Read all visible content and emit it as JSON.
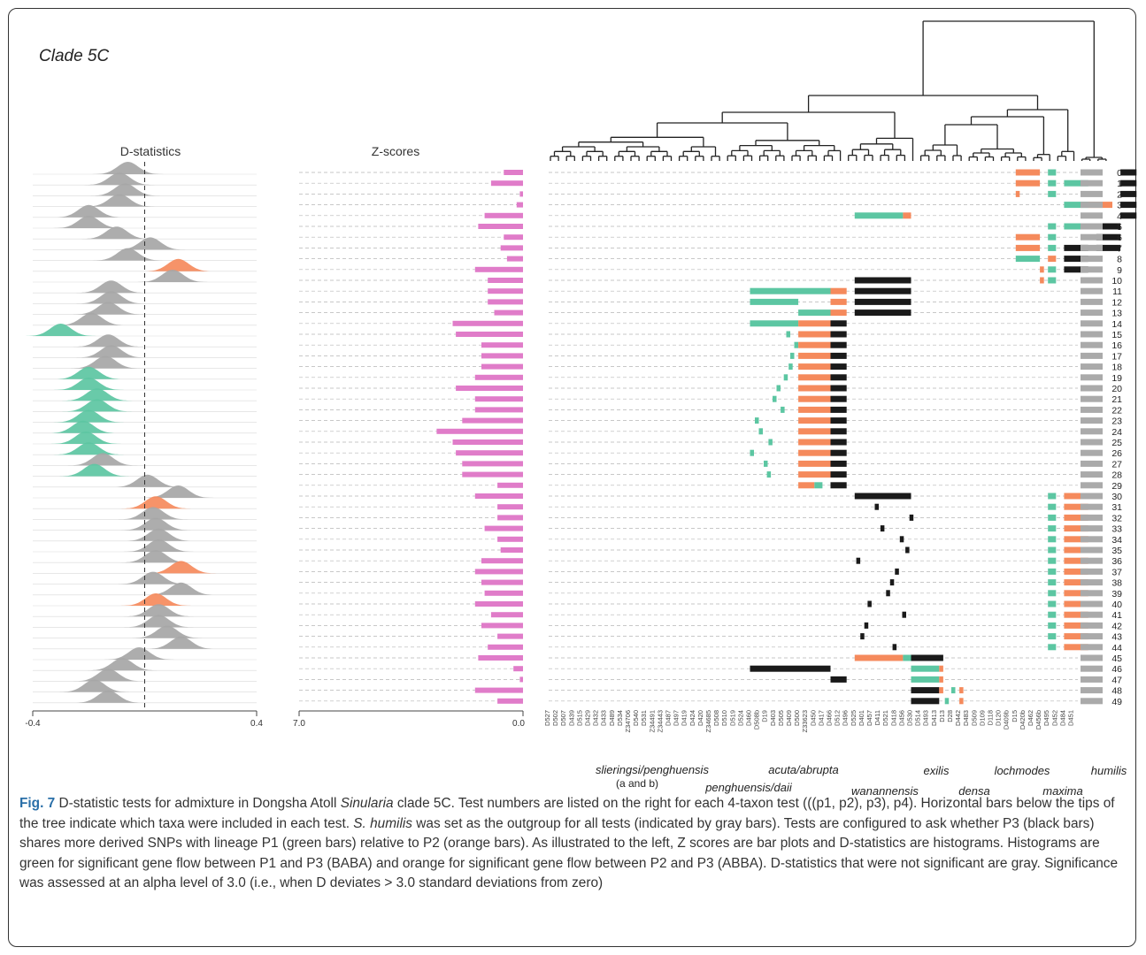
{
  "figure": {
    "title": "Clade 5C",
    "dstat_title": "D-statistics",
    "zscore_title": "Z-scores",
    "dstat_axis": {
      "min_label": "-0.4",
      "max_label": "0.4",
      "min": -0.4,
      "max": 0.4
    },
    "zscore_axis": {
      "left_label": "7.0",
      "right_label": "0.0",
      "max": 7.0
    },
    "colors": {
      "p1_green": "#5cc6a2",
      "p2_orange": "#f58a5c",
      "p3_black": "#1a1a1a",
      "outgroup_gray": "#aaaaaa",
      "zbar_pink": "#e07cc9",
      "ns_gray": "#a6a6a6"
    },
    "taxa": [
      "D527",
      "D502",
      "D507",
      "D439",
      "D515",
      "D429",
      "D432",
      "D433",
      "D489",
      "D534",
      "Z34706",
      "D540",
      "D531",
      "Z34491",
      "Z34443",
      "D487",
      "D497",
      "D419",
      "D424",
      "D420",
      "Z34685",
      "D508",
      "D510",
      "D519",
      "D524",
      "D460",
      "D508b",
      "D19",
      "D403",
      "D505",
      "D409",
      "D500",
      "Z33623",
      "D450",
      "D417",
      "D466",
      "D512",
      "D496",
      "D525",
      "D401",
      "D457",
      "D411",
      "D521",
      "D418",
      "D456",
      "D530",
      "D514",
      "D493",
      "D413",
      "D13",
      "D28",
      "D442",
      "D483",
      "D509",
      "D109",
      "D118",
      "D120",
      "D409b",
      "D15",
      "D420b",
      "D462",
      "D456b",
      "D495",
      "D452",
      "D484",
      "D451"
    ],
    "clade_labels": [
      "slieringsi/penghuensis",
      "(a and b)",
      "penghuensis/daii",
      "acuta/abrupta",
      "wanannensis",
      "exilis",
      "densa",
      "lochmodes",
      "maxima",
      "humilis"
    ]
  },
  "chart_data": {
    "type": "bar",
    "title": "",
    "categories": [
      "0",
      "1",
      "2",
      "3",
      "4",
      "5",
      "6",
      "7",
      "8",
      "9",
      "10",
      "11",
      "12",
      "13",
      "14",
      "15",
      "16",
      "17",
      "18",
      "19",
      "20",
      "21",
      "22",
      "23",
      "24",
      "25",
      "26",
      "27",
      "28",
      "29",
      "30",
      "31",
      "32",
      "33",
      "34",
      "35",
      "36",
      "37",
      "38",
      "39",
      "40",
      "41",
      "42",
      "43",
      "44",
      "45",
      "46",
      "47",
      "48",
      "49"
    ],
    "series": [
      {
        "name": "Z-scores",
        "values": [
          0.6,
          1.0,
          0.1,
          0.2,
          1.2,
          1.4,
          0.6,
          0.7,
          0.5,
          1.5,
          1.1,
          1.1,
          1.1,
          0.9,
          2.2,
          2.1,
          1.3,
          1.3,
          1.3,
          1.5,
          2.1,
          1.5,
          1.5,
          1.9,
          2.7,
          2.2,
          2.1,
          1.9,
          1.9,
          0.8,
          1.5,
          0.8,
          0.8,
          1.2,
          0.8,
          0.7,
          1.3,
          1.5,
          1.3,
          1.2,
          1.5,
          1.0,
          1.3,
          0.8,
          1.1,
          1.4,
          0.3,
          0.1,
          1.5,
          0.8
        ]
      },
      {
        "name": "D-statistics",
        "values": [
          -0.06,
          -0.09,
          -0.07,
          -0.09,
          -0.2,
          -0.2,
          -0.1,
          0.02,
          -0.06,
          0.12,
          0.1,
          -0.12,
          -0.12,
          -0.13,
          -0.19,
          -0.3,
          -0.13,
          -0.12,
          -0.14,
          -0.2,
          -0.2,
          -0.17,
          -0.17,
          -0.2,
          -0.22,
          -0.21,
          -0.2,
          -0.15,
          -0.18,
          0.01,
          0.12,
          0.04,
          0.03,
          0.04,
          0.05,
          0.05,
          0.04,
          0.13,
          0.03,
          0.13,
          0.04,
          0.05,
          0.05,
          0.08,
          0.13,
          -0.02,
          -0.08,
          -0.13,
          -0.18,
          -0.13
        ]
      }
    ],
    "significance": [
      "ns",
      "ns",
      "ns",
      "ns",
      "ns",
      "ns",
      "ns",
      "ns",
      "ns",
      "ABBA",
      "ns",
      "ns",
      "ns",
      "ns",
      "ns",
      "BABA",
      "ns",
      "ns",
      "ns",
      "BABA",
      "BABA",
      "BABA",
      "BABA",
      "BABA",
      "BABA",
      "BABA",
      "BABA",
      "ns",
      "BABA",
      "ns",
      "ns",
      "ABBA",
      "ns",
      "ns",
      "ns",
      "ns",
      "ns",
      "ABBA",
      "ns",
      "ns",
      "ABBA",
      "ns",
      "ns",
      "ns",
      "ns",
      "ns",
      "ns",
      "ns",
      "ns",
      "ns"
    ],
    "test_segments": [
      [
        {
          "t": "p2",
          "a": 58,
          "b": 61
        },
        {
          "t": "p1",
          "a": 62,
          "b": 63
        },
        {
          "t": "p3",
          "a": 71,
          "b": 73
        }
      ],
      [
        {
          "t": "p2",
          "a": 58,
          "b": 61
        },
        {
          "t": "p1",
          "a": 62,
          "b": 63
        },
        {
          "t": "p1",
          "a": 64,
          "b": 67
        },
        {
          "t": "p3",
          "a": 71,
          "b": 73
        }
      ],
      [
        {
          "t": "p2",
          "a": 58,
          "b": 58.5
        },
        {
          "t": "p1",
          "a": 62,
          "b": 63
        },
        {
          "t": "p3",
          "a": 71,
          "b": 73
        }
      ],
      [
        {
          "t": "p1",
          "a": 64,
          "b": 67
        },
        {
          "t": "p2",
          "a": 67,
          "b": 70
        },
        {
          "t": "p3",
          "a": 71,
          "b": 73
        }
      ],
      [
        {
          "t": "p1",
          "a": 38,
          "b": 44
        },
        {
          "t": "p2",
          "a": 44,
          "b": 45
        },
        {
          "t": "p3",
          "a": 71,
          "b": 73
        }
      ],
      [
        {
          "t": "p1",
          "a": 62,
          "b": 63
        },
        {
          "t": "p1",
          "a": 64,
          "b": 67
        },
        {
          "t": "p3",
          "a": 68,
          "b": 71
        }
      ],
      [
        {
          "t": "p2",
          "a": 58,
          "b": 61
        },
        {
          "t": "p1",
          "a": 62,
          "b": 63
        },
        {
          "t": "p3",
          "a": 68,
          "b": 71
        }
      ],
      [
        {
          "t": "p2",
          "a": 58,
          "b": 61
        },
        {
          "t": "p1",
          "a": 62,
          "b": 63
        },
        {
          "t": "p3",
          "a": 64,
          "b": 67
        },
        {
          "t": "p3",
          "a": 68,
          "b": 71
        }
      ],
      [
        {
          "t": "p1",
          "a": 58,
          "b": 61
        },
        {
          "t": "p2",
          "a": 62,
          "b": 63
        },
        {
          "t": "p3",
          "a": 64,
          "b": 67
        }
      ],
      [
        {
          "t": "p2",
          "a": 61,
          "b": 61.5
        },
        {
          "t": "p1",
          "a": 62,
          "b": 63
        },
        {
          "t": "p3",
          "a": 64,
          "b": 67
        }
      ],
      [
        {
          "t": "p2",
          "a": 61,
          "b": 61.5
        },
        {
          "t": "p1",
          "a": 62,
          "b": 63
        },
        {
          "t": "p3",
          "a": 38,
          "b": 45
        }
      ],
      [
        {
          "t": "p1",
          "a": 25,
          "b": 35
        },
        {
          "t": "p2",
          "a": 35,
          "b": 37
        },
        {
          "t": "p3",
          "a": 38,
          "b": 45
        }
      ],
      [
        {
          "t": "p1",
          "a": 25,
          "b": 31
        },
        {
          "t": "p2",
          "a": 35,
          "b": 37
        },
        {
          "t": "p3",
          "a": 38,
          "b": 45
        }
      ],
      [
        {
          "t": "p1",
          "a": 31,
          "b": 35
        },
        {
          "t": "p2",
          "a": 35,
          "b": 37
        },
        {
          "t": "p3",
          "a": 38,
          "b": 45
        }
      ],
      [
        {
          "t": "p1",
          "a": 25,
          "b": 31
        },
        {
          "t": "p2",
          "a": 31,
          "b": 35
        },
        {
          "t": "p3",
          "a": 35,
          "b": 37
        }
      ],
      [
        {
          "t": "p1",
          "a": 29.5,
          "b": 29.7
        },
        {
          "t": "p2",
          "a": 31,
          "b": 35
        },
        {
          "t": "p3",
          "a": 35,
          "b": 37
        }
      ],
      [
        {
          "t": "p1",
          "a": 30.5,
          "b": 30.7
        },
        {
          "t": "p2",
          "a": 31,
          "b": 35
        },
        {
          "t": "p3",
          "a": 35,
          "b": 37
        }
      ],
      [
        {
          "t": "p1",
          "a": 30,
          "b": 30.2
        },
        {
          "t": "p2",
          "a": 31,
          "b": 35
        },
        {
          "t": "p3",
          "a": 35,
          "b": 37
        }
      ],
      [
        {
          "t": "p1",
          "a": 29.8,
          "b": 30
        },
        {
          "t": "p2",
          "a": 31,
          "b": 35
        },
        {
          "t": "p3",
          "a": 35,
          "b": 37
        }
      ],
      [
        {
          "t": "p1",
          "a": 29.2,
          "b": 29.4
        },
        {
          "t": "p2",
          "a": 31,
          "b": 35
        },
        {
          "t": "p3",
          "a": 35,
          "b": 37
        }
      ],
      [
        {
          "t": "p1",
          "a": 28.3,
          "b": 28.5
        },
        {
          "t": "p2",
          "a": 31,
          "b": 35
        },
        {
          "t": "p3",
          "a": 35,
          "b": 37
        }
      ],
      [
        {
          "t": "p1",
          "a": 27.8,
          "b": 28
        },
        {
          "t": "p2",
          "a": 31,
          "b": 35
        },
        {
          "t": "p3",
          "a": 35,
          "b": 37
        }
      ],
      [
        {
          "t": "p1",
          "a": 28.8,
          "b": 29
        },
        {
          "t": "p2",
          "a": 31,
          "b": 35
        },
        {
          "t": "p3",
          "a": 35,
          "b": 37
        }
      ],
      [
        {
          "t": "p1",
          "a": 25.6,
          "b": 25.8
        },
        {
          "t": "p2",
          "a": 31,
          "b": 35
        },
        {
          "t": "p3",
          "a": 35,
          "b": 37
        }
      ],
      [
        {
          "t": "p1",
          "a": 26.1,
          "b": 26.3
        },
        {
          "t": "p2",
          "a": 31,
          "b": 35
        },
        {
          "t": "p3",
          "a": 35,
          "b": 37
        }
      ],
      [
        {
          "t": "p1",
          "a": 27.3,
          "b": 27.5
        },
        {
          "t": "p2",
          "a": 31,
          "b": 35
        },
        {
          "t": "p3",
          "a": 35,
          "b": 37
        }
      ],
      [
        {
          "t": "p1",
          "a": 25,
          "b": 25.2
        },
        {
          "t": "p2",
          "a": 31,
          "b": 35
        },
        {
          "t": "p3",
          "a": 35,
          "b": 37
        }
      ],
      [
        {
          "t": "p1",
          "a": 26.7,
          "b": 26.9
        },
        {
          "t": "p2",
          "a": 31,
          "b": 35
        },
        {
          "t": "p3",
          "a": 35,
          "b": 37
        }
      ],
      [
        {
          "t": "p1",
          "a": 27.1,
          "b": 27.3
        },
        {
          "t": "p2",
          "a": 31,
          "b": 35
        },
        {
          "t": "p3",
          "a": 35,
          "b": 37
        }
      ],
      [
        {
          "t": "p2",
          "a": 31,
          "b": 33
        },
        {
          "t": "p1",
          "a": 33,
          "b": 34
        },
        {
          "t": "p3",
          "a": 35,
          "b": 37
        }
      ],
      [
        {
          "t": "p3",
          "a": 38,
          "b": 45
        },
        {
          "t": "p1",
          "a": 62,
          "b": 63
        },
        {
          "t": "p2",
          "a": 64,
          "b": 67
        }
      ],
      [
        {
          "t": "p3",
          "a": 40.5,
          "b": 40.7
        },
        {
          "t": "p1",
          "a": 62,
          "b": 63
        },
        {
          "t": "p2",
          "a": 64,
          "b": 67
        }
      ],
      [
        {
          "t": "p3",
          "a": 44.8,
          "b": 45
        },
        {
          "t": "p1",
          "a": 62,
          "b": 63
        },
        {
          "t": "p2",
          "a": 64,
          "b": 67
        }
      ],
      [
        {
          "t": "p3",
          "a": 41.2,
          "b": 41.4
        },
        {
          "t": "p1",
          "a": 62,
          "b": 63
        },
        {
          "t": "p2",
          "a": 64,
          "b": 67
        }
      ],
      [
        {
          "t": "p3",
          "a": 43.6,
          "b": 43.8
        },
        {
          "t": "p1",
          "a": 62,
          "b": 63
        },
        {
          "t": "p2",
          "a": 64,
          "b": 67
        }
      ],
      [
        {
          "t": "p3",
          "a": 44.3,
          "b": 44.5
        },
        {
          "t": "p1",
          "a": 62,
          "b": 63
        },
        {
          "t": "p2",
          "a": 64,
          "b": 67
        }
      ],
      [
        {
          "t": "p3",
          "a": 38.2,
          "b": 38.4
        },
        {
          "t": "p1",
          "a": 62,
          "b": 63
        },
        {
          "t": "p2",
          "a": 64,
          "b": 67
        }
      ],
      [
        {
          "t": "p3",
          "a": 43,
          "b": 43.2
        },
        {
          "t": "p1",
          "a": 62,
          "b": 63
        },
        {
          "t": "p2",
          "a": 64,
          "b": 67
        }
      ],
      [
        {
          "t": "p3",
          "a": 42.4,
          "b": 42.6
        },
        {
          "t": "p1",
          "a": 62,
          "b": 63
        },
        {
          "t": "p2",
          "a": 64,
          "b": 67
        }
      ],
      [
        {
          "t": "p3",
          "a": 41.9,
          "b": 42.1
        },
        {
          "t": "p1",
          "a": 62,
          "b": 63
        },
        {
          "t": "p2",
          "a": 64,
          "b": 67
        }
      ],
      [
        {
          "t": "p3",
          "a": 39.6,
          "b": 39.8
        },
        {
          "t": "p1",
          "a": 62,
          "b": 63
        },
        {
          "t": "p2",
          "a": 64,
          "b": 67
        }
      ],
      [
        {
          "t": "p3",
          "a": 43.9,
          "b": 44.1
        },
        {
          "t": "p1",
          "a": 62,
          "b": 63
        },
        {
          "t": "p2",
          "a": 64,
          "b": 67
        }
      ],
      [
        {
          "t": "p3",
          "a": 39.2,
          "b": 39.4
        },
        {
          "t": "p1",
          "a": 62,
          "b": 63
        },
        {
          "t": "p2",
          "a": 64,
          "b": 67
        }
      ],
      [
        {
          "t": "p3",
          "a": 38.7,
          "b": 38.9
        },
        {
          "t": "p1",
          "a": 62,
          "b": 63
        },
        {
          "t": "p2",
          "a": 64,
          "b": 67
        }
      ],
      [
        {
          "t": "p3",
          "a": 42.7,
          "b": 42.9
        },
        {
          "t": "p1",
          "a": 62,
          "b": 63
        },
        {
          "t": "p2",
          "a": 64,
          "b": 67
        }
      ],
      [
        {
          "t": "p2",
          "a": 38,
          "b": 44
        },
        {
          "t": "p1",
          "a": 44,
          "b": 45
        },
        {
          "t": "p3",
          "a": 45,
          "b": 49
        }
      ],
      [
        {
          "t": "p3",
          "a": 25,
          "b": 35
        },
        {
          "t": "p1",
          "a": 45,
          "b": 48.5
        },
        {
          "t": "p2",
          "a": 48.5,
          "b": 49
        }
      ],
      [
        {
          "t": "p3",
          "a": 35,
          "b": 37
        },
        {
          "t": "p1",
          "a": 45,
          "b": 48.5
        },
        {
          "t": "p2",
          "a": 48.5,
          "b": 49
        }
      ],
      [
        {
          "t": "p3",
          "a": 45,
          "b": 48.5
        },
        {
          "t": "p2",
          "a": 48.5,
          "b": 49
        },
        {
          "t": "p1",
          "a": 50,
          "b": 50.3
        },
        {
          "t": "p2",
          "a": 51,
          "b": 51.3
        }
      ],
      [
        {
          "t": "p3",
          "a": 45,
          "b": 48.5
        },
        {
          "t": "p1",
          "a": 49.2,
          "b": 49.5
        },
        {
          "t": "p2",
          "a": 51,
          "b": 51.3
        }
      ]
    ]
  },
  "caption": {
    "label": "Fig. 7",
    "part1": " D-statistic tests for admixture in Dongsha Atoll ",
    "genus": "Sinularia",
    "part2": " clade 5C. Test numbers are listed on the right for each 4-taxon test (((p1, p2), p3), p4). Horizontal bars below the tips of the tree indicate which taxa were included in each test. ",
    "species": "S. humilis",
    "part3": " was set as the outgroup for all tests (indicated by gray bars). Tests are configured to ask whether P3 (black bars) shares more derived SNPs with lineage P1 (green bars) relative to P2 (orange bars). As illustrated to the left, Z scores are bar plots and D-statistics are histograms. Histograms are green for significant gene flow between P1 and P3 (BABA) and orange for significant gene flow between P2 and P3 (ABBA). D-statistics that were not significant are gray. Significance was assessed at an alpha level of 3.0 (i.e., when D deviates > 3.0 standard deviations from zero)"
  }
}
